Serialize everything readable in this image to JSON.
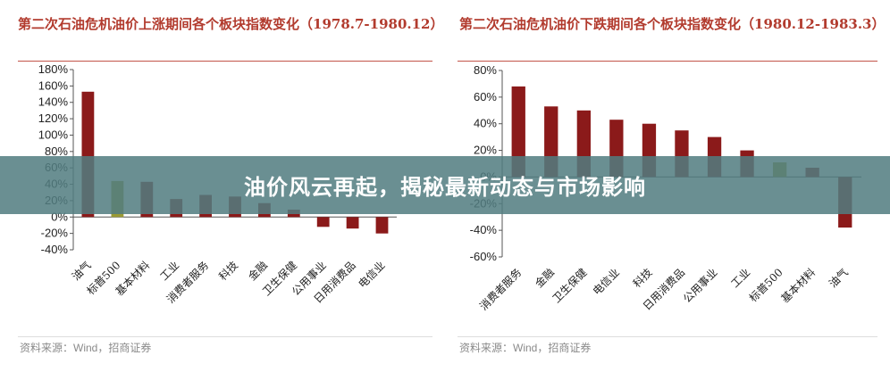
{
  "banner": {
    "text": "油价风云再起，揭秘最新动态与市场影响"
  },
  "colors": {
    "bar_default": "#8b1a1a",
    "bar_gold": "#9a9a33",
    "title": "#b23b2e",
    "banner_bg": "#527d80"
  },
  "chart_data": [
    {
      "type": "bar",
      "title": "第二次石油危机油价上涨期间各个板块指数变化（1978.7-1980.12）",
      "source": "资料来源：Wind，招商证券",
      "categories": [
        "油气",
        "标普500",
        "基本材料",
        "工业",
        "消费者服务",
        "科技",
        "金融",
        "卫生保健",
        "公用事业",
        "日用消费品",
        "电信业"
      ],
      "values": [
        153,
        44,
        43,
        22,
        27,
        25,
        17,
        9,
        -12,
        -14,
        -20
      ],
      "highlight": "标普500",
      "ylim": [
        -40,
        180
      ],
      "yticks": [
        -40,
        -20,
        0,
        20,
        40,
        60,
        80,
        100,
        120,
        140,
        160,
        180
      ],
      "tick_format": "percent",
      "grid": false,
      "legend": "none"
    },
    {
      "type": "bar",
      "title": "第二次石油危机油价下跌期间各个板块指数变化（1980.12-1983.3）",
      "source": "资料来源：Wind，招商证券",
      "categories": [
        "消费者服务",
        "金融",
        "卫生保健",
        "电信业",
        "科技",
        "日用消费品",
        "公用事业",
        "工业",
        "标普500",
        "基本材料",
        "油气"
      ],
      "values": [
        68,
        53,
        50,
        43,
        40,
        35,
        30,
        20,
        11,
        7,
        -38
      ],
      "highlight": "标普500",
      "ylim": [
        -60,
        80
      ],
      "yticks": [
        -60,
        -40,
        -20,
        0,
        20,
        40,
        60,
        80
      ],
      "tick_format": "percent",
      "grid": false,
      "legend": "none"
    }
  ]
}
